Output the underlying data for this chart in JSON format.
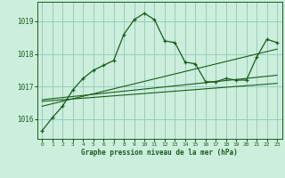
{
  "title": "Graphe pression niveau de la mer (hPa)",
  "bg_color": "#cceedd",
  "grid_color": "#99ccbb",
  "line_color": "#1a5c1a",
  "xlim": [
    -0.5,
    23.5
  ],
  "ylim": [
    1015.4,
    1019.6
  ],
  "yticks": [
    1016,
    1017,
    1018,
    1019
  ],
  "xticks": [
    0,
    1,
    2,
    3,
    4,
    5,
    6,
    7,
    8,
    9,
    10,
    11,
    12,
    13,
    14,
    15,
    16,
    17,
    18,
    19,
    20,
    21,
    22,
    23
  ],
  "series1_x": [
    0,
    1,
    2,
    3,
    4,
    5,
    6,
    7,
    8,
    9,
    10,
    11,
    12,
    13,
    14,
    15,
    16,
    17,
    18,
    19,
    20,
    21,
    22,
    23
  ],
  "series1_y": [
    1015.65,
    1016.05,
    1016.4,
    1016.9,
    1017.25,
    1017.5,
    1017.65,
    1017.8,
    1018.6,
    1019.05,
    1019.25,
    1019.05,
    1018.4,
    1018.35,
    1017.75,
    1017.7,
    1017.15,
    1017.15,
    1017.25,
    1017.2,
    1017.2,
    1017.9,
    1018.45,
    1018.35
  ],
  "trend1_x": [
    0,
    23
  ],
  "trend1_y": [
    1016.4,
    1018.15
  ],
  "trend2_x": [
    0,
    23
  ],
  "trend2_y": [
    1016.55,
    1017.1
  ],
  "trend3_x": [
    0,
    23
  ],
  "trend3_y": [
    1016.6,
    1017.35
  ]
}
